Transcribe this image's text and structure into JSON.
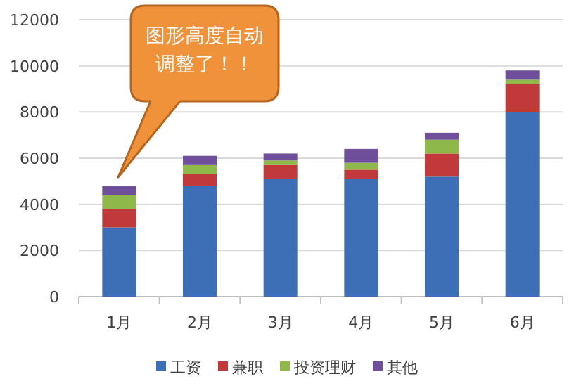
{
  "chart_data": {
    "type": "bar",
    "stacked": true,
    "categories": [
      "1月",
      "2月",
      "3月",
      "4月",
      "5月",
      "6月"
    ],
    "series": [
      {
        "name": "工资",
        "color": "#3d6fb6",
        "values": [
          3000,
          4800,
          5100,
          5100,
          5200,
          8000
        ]
      },
      {
        "name": "兼职",
        "color": "#c0393b",
        "values": [
          800,
          500,
          600,
          400,
          1000,
          1200
        ]
      },
      {
        "name": "投资理财",
        "color": "#8fb84a",
        "values": [
          600,
          400,
          200,
          300,
          600,
          200
        ]
      },
      {
        "name": "其他",
        "color": "#6f4f9b",
        "values": [
          400,
          400,
          300,
          600,
          300,
          400
        ]
      }
    ],
    "ylim": [
      0,
      12000
    ],
    "yticks": [
      0,
      2000,
      4000,
      6000,
      8000,
      10000,
      12000
    ],
    "grid": "y",
    "legend": "bottom",
    "annotations": [
      "图形高度自动调整了！！"
    ]
  }
}
